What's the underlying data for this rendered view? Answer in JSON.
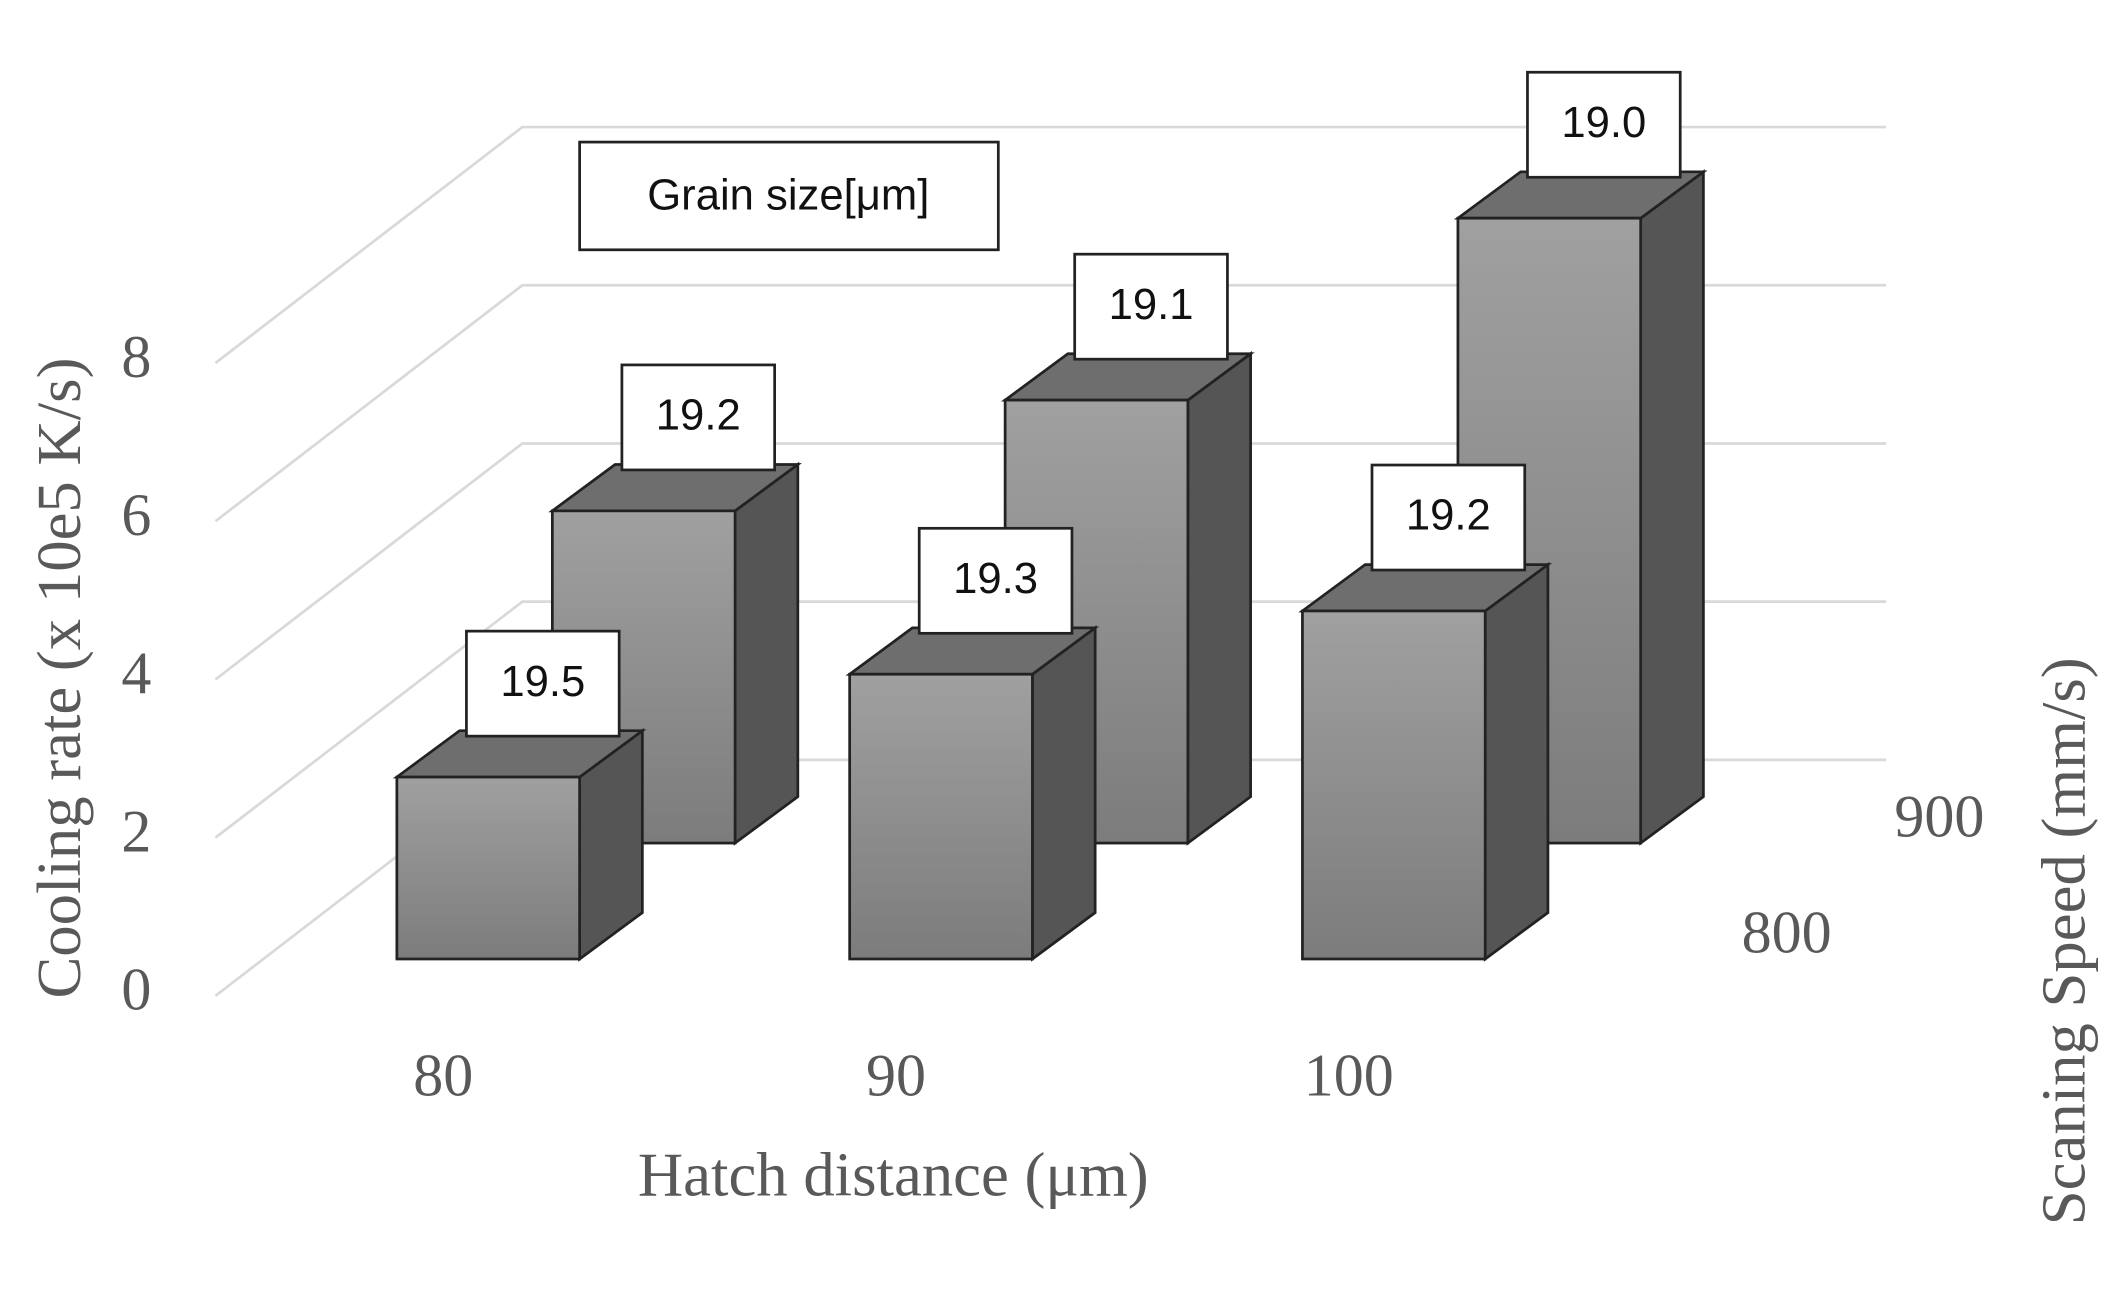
{
  "chart_data": {
    "type": "bar3d",
    "categories": [
      "80",
      "90",
      "100"
    ],
    "x_label": "Hatch distance (μm)",
    "y_label": "Cooling rate (x 10e5 K/s)",
    "z_label": "Scaning Speed (mm/s)",
    "grain_size_title": "Grain size[μm]",
    "ylim": [
      0,
      8
    ],
    "yticks": [
      0,
      2,
      4,
      6,
      8
    ],
    "grid": true,
    "series": [
      {
        "name": "800",
        "color": "#8c8c8c",
        "values": [
          2.3,
          3.6,
          4.4
        ],
        "grain_size_labels": [
          "19.5",
          "19.3",
          "19.2"
        ]
      },
      {
        "name": "900",
        "color": "#8c8c8c",
        "values": [
          4.2,
          5.6,
          7.9
        ],
        "grain_size_labels": [
          "19.2",
          "19.1",
          "19.0"
        ]
      }
    ]
  }
}
